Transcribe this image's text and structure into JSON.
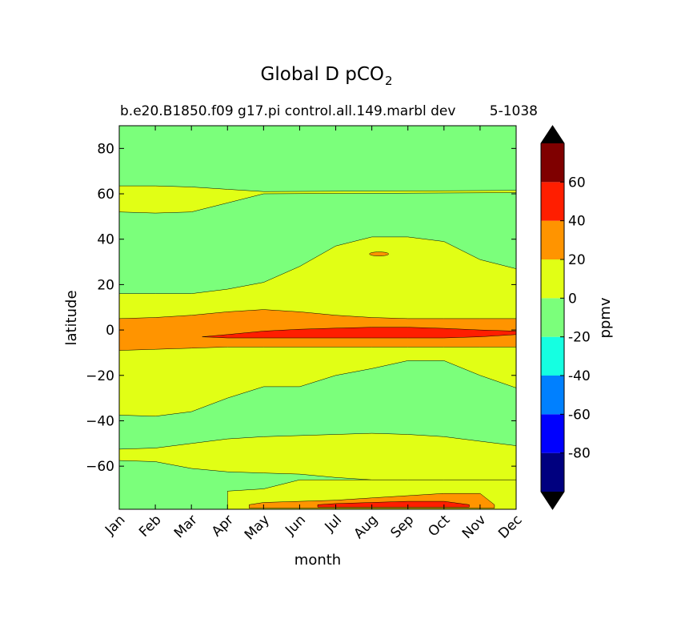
{
  "chart_data": {
    "type": "heatmap",
    "subtype": "filled-contour",
    "title": "Global D pCO",
    "title_subscript": "2",
    "subtitle_left": "b.e20.B1850.f09 g17.pi control.all.149.marbl dev",
    "subtitle_right": "5-1038",
    "xlabel": "month",
    "ylabel": "latitude",
    "x_categories": [
      "Jan",
      "Feb",
      "Mar",
      "Apr",
      "May",
      "Jun",
      "Jul",
      "Aug",
      "Sep",
      "Oct",
      "Nov",
      "Dec"
    ],
    "ylim": [
      -79,
      90
    ],
    "y_ticks": [
      80,
      60,
      40,
      20,
      0,
      -20,
      -40,
      -60
    ],
    "y_tick_labels": [
      "80",
      "60",
      "40",
      "20",
      "0",
      "−20",
      "−40",
      "−60"
    ],
    "colorbar": {
      "label": "ppmv",
      "levels": [
        -100,
        -80,
        -60,
        -40,
        -20,
        0,
        20,
        40,
        60,
        80
      ],
      "colors": [
        "#00007f",
        "#0000fe",
        "#0080ff",
        "#15ffe1",
        "#7bff7b",
        "#e1ff15",
        "#ff9400",
        "#ff1e00",
        "#7f0000"
      ],
      "under_color": "#000000",
      "over_color": "#000000",
      "ticks": [
        60,
        40,
        20,
        0,
        -20,
        -40,
        -60,
        -80
      ],
      "tick_labels": [
        "60",
        "40",
        "20",
        "0",
        "-20",
        "-40",
        "-60",
        "-80"
      ]
    },
    "regions": [
      {
        "name": "background",
        "level": "-20 to 0",
        "color": "#7bff7b"
      },
      {
        "name": "north-band-60N",
        "level": "0 to 20",
        "color": "#e1ff15",
        "months": [
          0,
          1,
          2,
          3,
          4,
          5,
          6,
          7,
          8,
          9,
          10,
          11
        ],
        "upper": [
          63.5,
          63.5,
          63,
          62,
          61,
          null,
          null,
          null,
          null,
          null,
          null,
          61.5
        ],
        "lower": [
          52,
          51.5,
          52,
          56,
          60,
          null,
          null,
          null,
          null,
          null,
          null,
          60.5
        ]
      },
      {
        "name": "tropical-subtropical-band",
        "level": "0 to 20",
        "color": "#e1ff15",
        "months": [
          0,
          1,
          2,
          3,
          4,
          5,
          6,
          7,
          8,
          9,
          10,
          11
        ],
        "upper": [
          16,
          16,
          16,
          18,
          21,
          28,
          37,
          41,
          41,
          39,
          31,
          27
        ],
        "lower": [
          -37.5,
          -38,
          -36,
          -30,
          -25,
          -25,
          -20,
          -17,
          -13.5,
          -13.5,
          -20,
          -25.5
        ]
      },
      {
        "name": "equatorial-band",
        "level": "20 to 40",
        "color": "#ff9400",
        "months": [
          0,
          1,
          2,
          3,
          4,
          5,
          6,
          7,
          8,
          9,
          10,
          11
        ],
        "upper": [
          5,
          5.5,
          6.5,
          8,
          9,
          8,
          6.5,
          5.5,
          5,
          5,
          5,
          5
        ],
        "lower": [
          -9,
          -8.5,
          -8,
          -7.5,
          -7.5,
          -7.5,
          -7.5,
          -7.5,
          -7.5,
          -7.5,
          -7.5,
          -7.5
        ]
      },
      {
        "name": "equatorial-core",
        "level": "40 to 60",
        "color": "#ff1e00",
        "months": [
          2.3,
          3,
          4,
          5,
          6,
          7,
          8,
          9,
          10,
          11
        ],
        "upper": [
          -3,
          -2,
          -0.5,
          0.3,
          0.8,
          1.2,
          1.2,
          0.7,
          0,
          -0.5
        ],
        "lower": [
          -3,
          -3.5,
          -3.5,
          -3.5,
          -3.5,
          -3.5,
          -3.5,
          -3.5,
          -3,
          -2
        ]
      },
      {
        "name": "small-patch-33N",
        "level": "20 to 40",
        "color": "#ff9400",
        "center": [
          7.2,
          33.5
        ]
      },
      {
        "name": "south-band-55S",
        "level": "0 to 20",
        "color": "#e1ff15",
        "months": [
          0,
          1,
          2,
          3,
          4,
          5,
          6,
          7,
          8,
          9,
          10,
          11
        ],
        "upper": [
          -52.5,
          -52,
          -50,
          -48,
          -47,
          -46.5,
          -46,
          -45.5,
          -46,
          -47,
          -49,
          -51
        ],
        "lower": [
          -57.5,
          -58,
          -61,
          -62.5,
          -63,
          -63.5,
          -65,
          -66,
          -66,
          -66,
          -66,
          -66
        ]
      },
      {
        "name": "south-polar-yellow",
        "level": "0 to 20",
        "color": "#e1ff15",
        "months": [
          3,
          4,
          5,
          6,
          7,
          8,
          9,
          10,
          11
        ],
        "upper": [
          -71,
          -70,
          -66,
          -66,
          -66,
          -66,
          -66,
          -66,
          -66
        ],
        "lower": [
          -79,
          -79,
          -79,
          -79,
          -79,
          -79,
          -79,
          -79,
          -79
        ]
      },
      {
        "name": "south-polar-orange",
        "level": "20 to 40",
        "color": "#ff9400",
        "months": [
          3.6,
          4,
          5,
          6,
          7,
          8,
          9,
          10,
          10.4
        ],
        "upper": [
          -77,
          -76,
          -75.5,
          -75,
          -74,
          -73,
          -72,
          -72,
          -77
        ],
        "lower": [
          -78.5,
          -78.5,
          -78.5,
          -78.5,
          -78.5,
          -78.5,
          -78.5,
          -78.5,
          -78.5
        ]
      },
      {
        "name": "south-polar-red",
        "level": "40 to 60",
        "color": "#ff1e00",
        "months": [
          5.5,
          6,
          7,
          8,
          9,
          9.7
        ],
        "upper": [
          -77,
          -76.5,
          -76,
          -75.5,
          -75.5,
          -77
        ],
        "lower": [
          -78,
          -78,
          -78,
          -78,
          -78,
          -78
        ]
      }
    ]
  }
}
